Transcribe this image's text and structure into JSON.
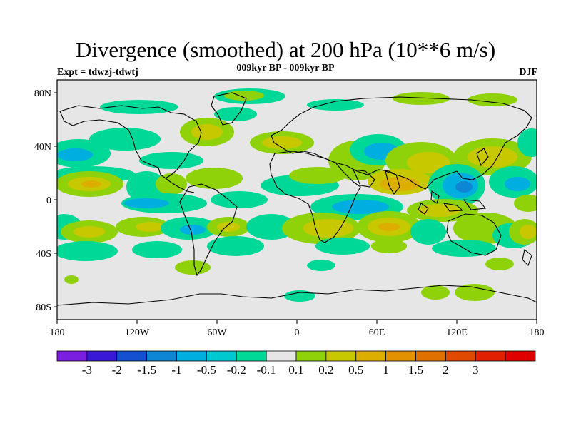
{
  "title": "Divergence (smoothed) at 200 hPa (10**6 m/s)",
  "subtitle": "009kyr BP - 009kyr BP",
  "experiment": "Expt = tdwzj-tdwtj",
  "season": "DJF",
  "axes": {
    "x_ticks": [
      "180",
      "120W",
      "60W",
      "0",
      "60E",
      "120E",
      "180"
    ],
    "y_ticks": [
      "80N",
      "40N",
      "0",
      "40S",
      "80S"
    ]
  },
  "colorbar": {
    "labels": [
      "-3",
      "-2",
      "-1.5",
      "-1",
      "-0.5",
      "-0.2",
      "-0.1",
      "0.1",
      "0.2",
      "0.5",
      "1",
      "1.5",
      "2",
      "3"
    ],
    "colors": [
      "#7a1fe0",
      "#3a18d8",
      "#1550d0",
      "#0e86d6",
      "#00aee0",
      "#00c8d0",
      "#00d898",
      "#e6e6e6",
      "#90d20a",
      "#c8c800",
      "#dcae00",
      "#e49100",
      "#e07000",
      "#e04a00",
      "#e02000",
      "#e00000"
    ]
  },
  "map_colors": {
    "background": "#e6e6e6",
    "neg_strong": "#0e86d6",
    "neg_mid": "#00aee0",
    "neg_weak": "#00d898",
    "pos_weak": "#90d20a",
    "pos_mid": "#c8c800",
    "pos_strong": "#dcae00",
    "pos_max": "#e49100",
    "coast": "#000000"
  }
}
